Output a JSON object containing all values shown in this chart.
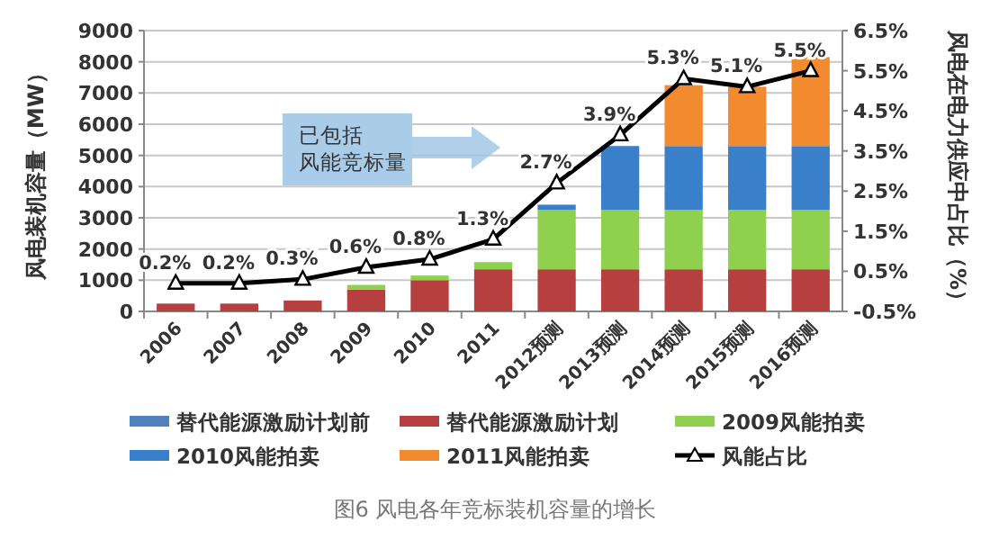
{
  "chart_data": {
    "type": "bar",
    "stacked": true,
    "ylabel": "风电装机容量（MW）",
    "y2label": "风电在电力供应中占比（%）",
    "categories": [
      "2006",
      "2007",
      "2008",
      "2009",
      "2010",
      "2011",
      "2012预测",
      "2013预测",
      "2014预测",
      "2015预测",
      "2016预测"
    ],
    "series": [
      {
        "name": "替代能源激励计划前",
        "color": "#4f81bd",
        "values": [
          0,
          0,
          0,
          0,
          0,
          0,
          0,
          0,
          0,
          0,
          0
        ]
      },
      {
        "name": "替代能源激励计划",
        "color": "#b5403f",
        "values": [
          250,
          250,
          350,
          700,
          1000,
          1350,
          1350,
          1350,
          1350,
          1350,
          1350
        ]
      },
      {
        "name": "2009风能拍卖",
        "color": "#8fd14f",
        "values": [
          0,
          0,
          0,
          150,
          150,
          230,
          1900,
          1900,
          1900,
          1900,
          1900
        ]
      },
      {
        "name": "2010风能拍卖",
        "color": "#3a7fca",
        "values": [
          0,
          0,
          0,
          0,
          0,
          0,
          170,
          2050,
          2050,
          2050,
          2050
        ]
      },
      {
        "name": "2011风能拍卖",
        "color": "#f28a30",
        "values": [
          0,
          0,
          0,
          0,
          0,
          0,
          0,
          0,
          1950,
          1900,
          2850
        ]
      },
      {
        "name": "风能占比",
        "type": "line",
        "axis": "y2",
        "color": "#000000",
        "marker": "triangle",
        "values": [
          0.2,
          0.2,
          0.3,
          0.6,
          0.8,
          1.3,
          2.7,
          3.9,
          5.3,
          5.1,
          5.5
        ],
        "value_labels": [
          "0.2%",
          "0.2%",
          "0.3%",
          "0.6%",
          "0.8%",
          "1.3%",
          "2.7%",
          "3.9%",
          "5.3%",
          "5.1%",
          "5.5%"
        ]
      }
    ],
    "ylim": [
      0,
      9000
    ],
    "yticks": [
      0,
      1000,
      2000,
      3000,
      4000,
      5000,
      6000,
      7000,
      8000,
      9000
    ],
    "y2lim": [
      -0.5,
      6.5
    ],
    "y2ticks": [
      {
        "value": -0.5,
        "label": "-0.5%"
      },
      {
        "value": 0.5,
        "label": "0.5%"
      },
      {
        "value": 1.5,
        "label": "1.5%"
      },
      {
        "value": 2.5,
        "label": "2.5%"
      },
      {
        "value": 3.5,
        "label": "3.5%"
      },
      {
        "value": 4.5,
        "label": "4.5%"
      },
      {
        "value": 5.5,
        "label": "5.5%"
      },
      {
        "value": 6.5,
        "label": "6.5%"
      }
    ],
    "grid": "y",
    "legend": "bottom",
    "annotations": [
      "已包括",
      "风能竞标量",
      "图6 风电各年竞标装机容量的增长"
    ]
  }
}
